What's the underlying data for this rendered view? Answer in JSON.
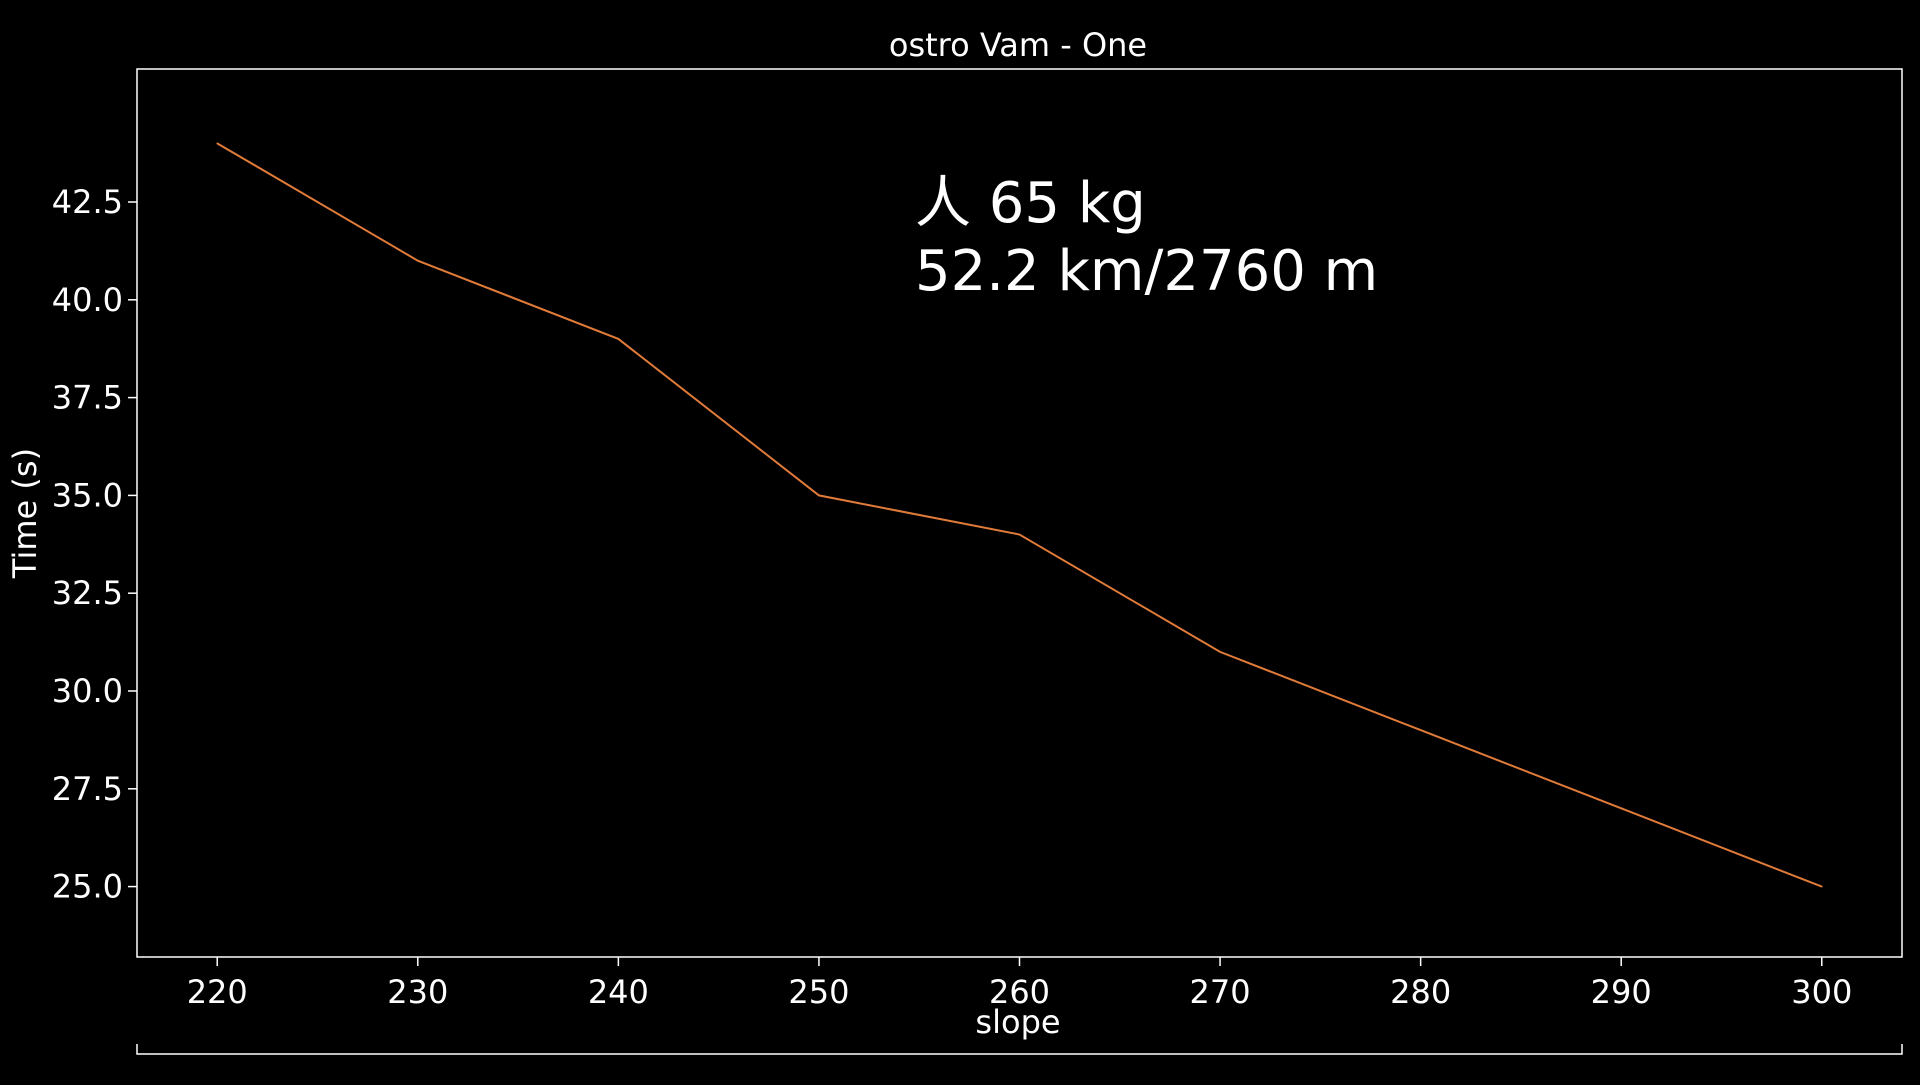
{
  "chart_data": {
    "type": "line",
    "title": "ostro Vam - One",
    "xlabel": "slope",
    "ylabel": "Time (s)",
    "x": [
      220,
      230,
      240,
      250,
      260,
      270,
      280,
      290,
      300
    ],
    "series": [
      {
        "values": [
          44.0,
          41.0,
          39.0,
          35.0,
          34.0,
          31.0,
          29.0,
          27.0,
          25.0
        ],
        "color": "#e07b39"
      }
    ],
    "xlim": [
      216,
      304
    ],
    "ylim": [
      23.2,
      45.9
    ],
    "xticks": [
      220,
      230,
      240,
      250,
      260,
      270,
      280,
      290,
      300
    ],
    "xtick_labels": [
      "220",
      "230",
      "240",
      "250",
      "260",
      "270",
      "280",
      "290",
      "300"
    ],
    "yticks": [
      25.0,
      27.5,
      30.0,
      32.5,
      35.0,
      37.5,
      40.0,
      42.5
    ],
    "ytick_labels": [
      "25.0",
      "27.5",
      "30.0",
      "32.5",
      "35.0",
      "37.5",
      "40.0",
      "42.5"
    ],
    "annotation": {
      "line1": "人 65 kg",
      "line2": "52.2 km/2760 m"
    },
    "grid": false,
    "background_color": "#000000",
    "axis_color": "#ffffff"
  }
}
